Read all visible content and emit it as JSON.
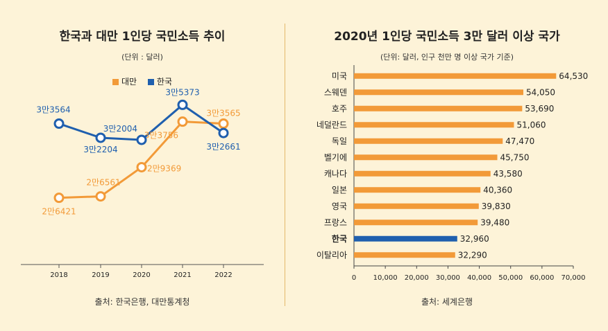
{
  "chart_data": [
    {
      "type": "line",
      "title": "한국과 대만 1인당 국민소득 추이",
      "subtitle": "(단위 : 달러)",
      "source": "출처: 한국은행, 대만통계청",
      "x": [
        "2018",
        "2019",
        "2020",
        "2021",
        "2022"
      ],
      "legend_position": "top-center",
      "grid": false,
      "ylim": [
        20000,
        36000
      ],
      "series": [
        {
          "name": "대만",
          "color": "#f29a38",
          "values": [
            26421,
            26561,
            29369,
            33756,
            33565
          ],
          "labels": [
            "2만6421",
            "2만6561",
            "2만9369",
            "3만3756",
            "3만3565"
          ]
        },
        {
          "name": "한국",
          "color": "#1f5fae",
          "values": [
            33564,
            32204,
            32004,
            35373,
            32661
          ],
          "labels": [
            "3만3564",
            "3만2204",
            "3만2004",
            "3만5373",
            "3만2661"
          ]
        }
      ]
    },
    {
      "type": "bar",
      "orientation": "horizontal",
      "title": "2020년 1인당 국민소득 3만 달러 이상 국가",
      "subtitle": "(단위: 달러, 인구 천만 명 이상 국가 기준)",
      "source": "출처: 세계은행",
      "categories": [
        "미국",
        "스웨덴",
        "호주",
        "네덜란드",
        "독일",
        "벨기에",
        "캐나다",
        "일본",
        "영국",
        "프랑스",
        "한국",
        "이탈리아"
      ],
      "values": [
        64530,
        54050,
        53690,
        51060,
        47470,
        45750,
        43580,
        40360,
        39830,
        39480,
        32960,
        32290
      ],
      "value_labels": [
        "64,530",
        "54,050",
        "53,690",
        "51,060",
        "47,470",
        "45,750",
        "43,580",
        "40,360",
        "39,830",
        "39,480",
        "32,960",
        "32,290"
      ],
      "highlight": "한국",
      "bar_color": "#f29a38",
      "highlight_color": "#1f5fae",
      "xlim": [
        0,
        70000
      ],
      "xticks": [
        "0",
        "10,000",
        "20,000",
        "30,000",
        "40,000",
        "50,000",
        "60,000",
        "70,000"
      ],
      "grid": false
    }
  ]
}
